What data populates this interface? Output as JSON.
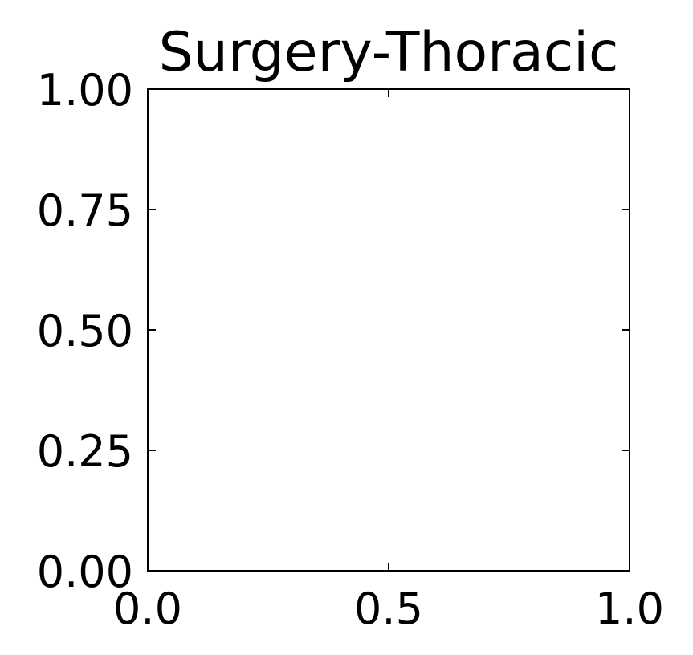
{
  "chart_data": {
    "type": "scatter",
    "title": "Surgery-Thoracic",
    "xlabel": "",
    "ylabel": "",
    "xlim": [
      0.0,
      1.0
    ],
    "ylim": [
      0.0,
      1.0
    ],
    "x_ticks": [
      0.0,
      0.5,
      1.0
    ],
    "x_tick_labels": [
      "0.0",
      "0.5",
      "1.0"
    ],
    "y_ticks": [
      0.0,
      0.25,
      0.5,
      0.75,
      1.0
    ],
    "y_tick_labels": [
      "0.00",
      "0.25",
      "0.50",
      "0.75",
      "1.00"
    ],
    "grid": false,
    "series": []
  }
}
